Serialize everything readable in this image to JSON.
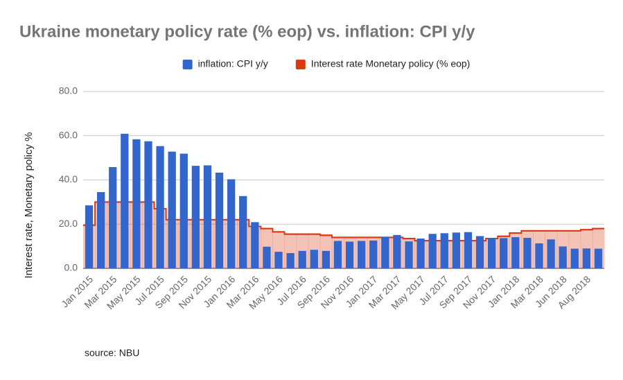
{
  "chart_data": {
    "type": "bar-step",
    "title": "Ukraine monetary policy rate (% eop) vs. inflation: CPI y/y",
    "y_axis_label": "Interest rate, Monetary policy %",
    "source": "source: NBU",
    "categories": [
      "Jan 2015",
      null,
      "Mar 2015",
      null,
      "May 2015",
      null,
      "Jul 2015",
      null,
      "Sep 2015",
      null,
      "Nov 2015",
      null,
      "Jan 2016",
      null,
      "Mar 2016",
      null,
      "May 2016",
      null,
      "Jul 2016",
      null,
      "Sep 2016",
      null,
      "Nov 2016",
      null,
      "Jan 2017",
      null,
      "Mar 2017",
      null,
      "May 2017",
      null,
      "Jul 2017",
      null,
      "Sep 2017",
      null,
      "Nov 2017",
      null,
      "Jan 2018",
      null,
      "Mar 2018",
      null,
      "Jun 2018",
      null,
      "Aug 2018",
      null
    ],
    "series": [
      {
        "name": "inflation: CPI y/y",
        "color": "#3366cc",
        "kind": "bar",
        "values": [
          28.5,
          34.5,
          45.8,
          60.9,
          58.4,
          57.5,
          55.3,
          52.8,
          51.9,
          46.4,
          46.6,
          43.3,
          40.3,
          32.7,
          20.9,
          9.8,
          7.5,
          6.9,
          7.9,
          8.4,
          7.9,
          12.4,
          12.1,
          12.4,
          12.6,
          14.2,
          15.1,
          12.2,
          13.5,
          15.6,
          15.9,
          16.2,
          16.4,
          14.6,
          13.6,
          13.7,
          14.1,
          13.8,
          11.3,
          13.1,
          9.9,
          8.9,
          9.0,
          8.9
        ]
      },
      {
        "name": "Interest rate Monetary policy (% eop)",
        "color": "#dc3912",
        "kind": "step-area",
        "values": [
          19.5,
          30,
          30,
          30,
          30,
          30,
          27,
          22,
          22,
          22,
          22,
          22,
          22,
          22,
          19,
          18,
          16.5,
          15.5,
          15.5,
          15.5,
          15,
          14,
          14,
          14,
          14,
          14,
          14,
          13.5,
          12.5,
          12.5,
          12.5,
          12.5,
          12.5,
          12.5,
          13.5,
          14.5,
          16,
          17,
          17,
          17,
          17,
          17,
          17.5,
          18
        ]
      }
    ],
    "ylim": [
      0,
      80
    ],
    "yticks": [
      {
        "value": 0,
        "label": "0.0"
      },
      {
        "value": 20,
        "label": "20.0"
      },
      {
        "value": 40,
        "label": "40.0"
      },
      {
        "value": 60,
        "label": "60.0"
      },
      {
        "value": 80,
        "label": "80.0"
      }
    ],
    "grid": true,
    "legend": "top"
  }
}
